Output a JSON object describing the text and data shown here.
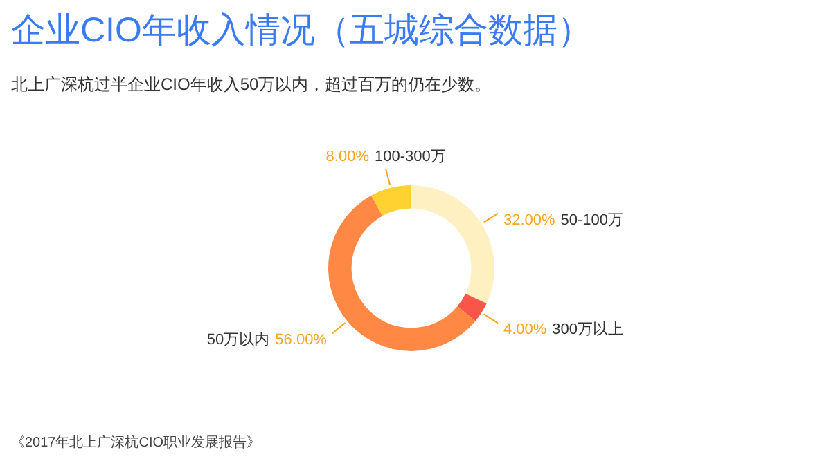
{
  "chart_data": {
    "type": "donut",
    "title": "企业CIO年收入情况（五城综合数据）",
    "subtitle": "北上广深杭过半企业CIO年收入50万以内，超过百万的仍在少数。",
    "categories": [
      "50-100万",
      "300万以上",
      "50万以内",
      "100-300万"
    ],
    "values": [
      32,
      4,
      56,
      8
    ],
    "colors": [
      "#fff0c2",
      "#f9564a",
      "#ff8845",
      "#ffd232"
    ],
    "value_labels": [
      "32.00%",
      "4.00%",
      "56.00%",
      "8.00%"
    ],
    "annotations": [
      "《2017年北上广深杭CIO职业发展报告》"
    ]
  }
}
